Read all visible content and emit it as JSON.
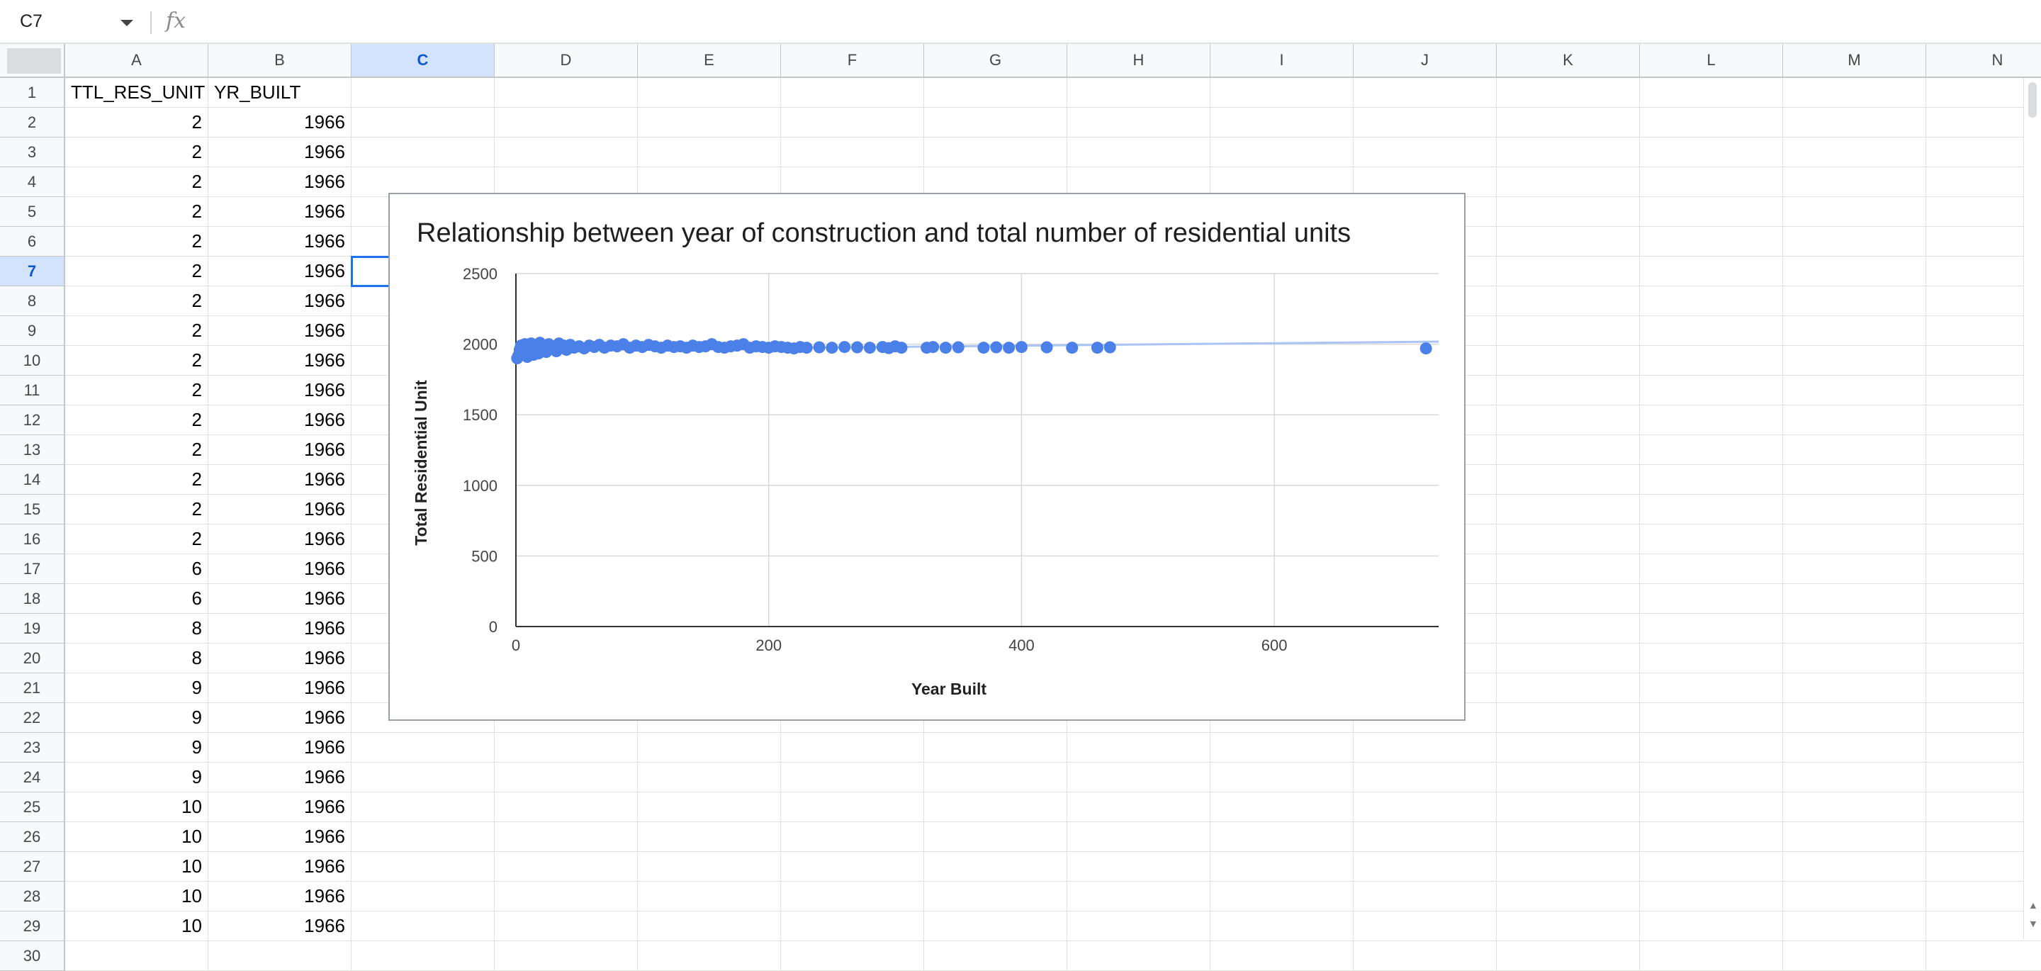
{
  "formula_bar": {
    "name_box": "C7",
    "fx_icon": "fx-icon",
    "formula": ""
  },
  "sheet": {
    "columns": [
      "A",
      "B",
      "C",
      "D",
      "E",
      "F",
      "G",
      "H",
      "I",
      "J",
      "K",
      "L",
      "M",
      "N"
    ],
    "selected_column": "C",
    "selected_row": 7,
    "header_row": [
      "TTL_RES_UNIT",
      "YR_BUILT"
    ],
    "rows": [
      [
        "2",
        "1966"
      ],
      [
        "2",
        "1966"
      ],
      [
        "2",
        "1966"
      ],
      [
        "2",
        "1966"
      ],
      [
        "2",
        "1966"
      ],
      [
        "2",
        "1966"
      ],
      [
        "2",
        "1966"
      ],
      [
        "2",
        "1966"
      ],
      [
        "2",
        "1966"
      ],
      [
        "2",
        "1966"
      ],
      [
        "2",
        "1966"
      ],
      [
        "2",
        "1966"
      ],
      [
        "2",
        "1966"
      ],
      [
        "2",
        "1966"
      ],
      [
        "2",
        "1966"
      ],
      [
        "6",
        "1966"
      ],
      [
        "6",
        "1966"
      ],
      [
        "8",
        "1966"
      ],
      [
        "8",
        "1966"
      ],
      [
        "9",
        "1966"
      ],
      [
        "9",
        "1966"
      ],
      [
        "9",
        "1966"
      ],
      [
        "9",
        "1966"
      ],
      [
        "10",
        "1966"
      ],
      [
        "10",
        "1966"
      ],
      [
        "10",
        "1966"
      ],
      [
        "10",
        "1966"
      ],
      [
        "10",
        "1966"
      ]
    ]
  },
  "chart_data": {
    "type": "scatter",
    "title": "Relationship between year of construction and total number of residential units",
    "xlabel": "Year Built",
    "ylabel": "Total Residential Unit",
    "xlim": [
      0,
      730
    ],
    "ylim": [
      0,
      2500
    ],
    "xticks": [
      "0",
      "200",
      "400",
      "600"
    ],
    "yticks": [
      "0",
      "500",
      "1000",
      "1500",
      "2000",
      "2500"
    ],
    "grid": true,
    "point_color": "#4a80e8",
    "trendline_color": "#a9c4f5",
    "trendline": [
      [
        0,
        1955
      ],
      [
        730,
        2018
      ]
    ],
    "points": [
      [
        1,
        1900
      ],
      [
        2,
        1920
      ],
      [
        3,
        1960
      ],
      [
        4,
        1990
      ],
      [
        5,
        1930
      ],
      [
        6,
        1970
      ],
      [
        7,
        2000
      ],
      [
        8,
        1950
      ],
      [
        9,
        1910
      ],
      [
        10,
        1985
      ],
      [
        11,
        1940
      ],
      [
        12,
        2005
      ],
      [
        13,
        1965
      ],
      [
        14,
        1925
      ],
      [
        15,
        1995
      ],
      [
        16,
        1955
      ],
      [
        17,
        1980
      ],
      [
        18,
        1935
      ],
      [
        19,
        2010
      ],
      [
        20,
        1960
      ],
      [
        22,
        1990
      ],
      [
        24,
        1945
      ],
      [
        26,
        2000
      ],
      [
        28,
        1970
      ],
      [
        30,
        1985
      ],
      [
        32,
        1950
      ],
      [
        34,
        2005
      ],
      [
        36,
        1975
      ],
      [
        38,
        1990
      ],
      [
        40,
        1960
      ],
      [
        43,
        1995
      ],
      [
        46,
        1975
      ],
      [
        50,
        1985
      ],
      [
        54,
        1970
      ],
      [
        58,
        1990
      ],
      [
        62,
        1980
      ],
      [
        66,
        1995
      ],
      [
        70,
        1975
      ],
      [
        75,
        1990
      ],
      [
        80,
        1985
      ],
      [
        85,
        2000
      ],
      [
        90,
        1975
      ],
      [
        95,
        1990
      ],
      [
        100,
        1980
      ],
      [
        105,
        1995
      ],
      [
        110,
        1985
      ],
      [
        115,
        1975
      ],
      [
        120,
        1990
      ],
      [
        125,
        1980
      ],
      [
        130,
        1985
      ],
      [
        135,
        1975
      ],
      [
        140,
        1990
      ],
      [
        145,
        1980
      ],
      [
        150,
        1985
      ],
      [
        155,
        2000
      ],
      [
        160,
        1980
      ],
      [
        165,
        1975
      ],
      [
        170,
        1985
      ],
      [
        175,
        1990
      ],
      [
        180,
        2000
      ],
      [
        185,
        1975
      ],
      [
        190,
        1985
      ],
      [
        195,
        1980
      ],
      [
        200,
        1975
      ],
      [
        205,
        1985
      ],
      [
        210,
        1980
      ],
      [
        215,
        1975
      ],
      [
        220,
        1970
      ],
      [
        225,
        1980
      ],
      [
        230,
        1975
      ],
      [
        240,
        1978
      ],
      [
        250,
        1975
      ],
      [
        260,
        1980
      ],
      [
        270,
        1978
      ],
      [
        280,
        1975
      ],
      [
        290,
        1980
      ],
      [
        295,
        1972
      ],
      [
        300,
        1985
      ],
      [
        305,
        1975
      ],
      [
        325,
        1975
      ],
      [
        330,
        1980
      ],
      [
        340,
        1975
      ],
      [
        350,
        1978
      ],
      [
        370,
        1975
      ],
      [
        380,
        1978
      ],
      [
        390,
        1975
      ],
      [
        400,
        1980
      ],
      [
        420,
        1978
      ],
      [
        440,
        1975
      ],
      [
        460,
        1975
      ],
      [
        470,
        1978
      ],
      [
        720,
        1970
      ]
    ]
  }
}
